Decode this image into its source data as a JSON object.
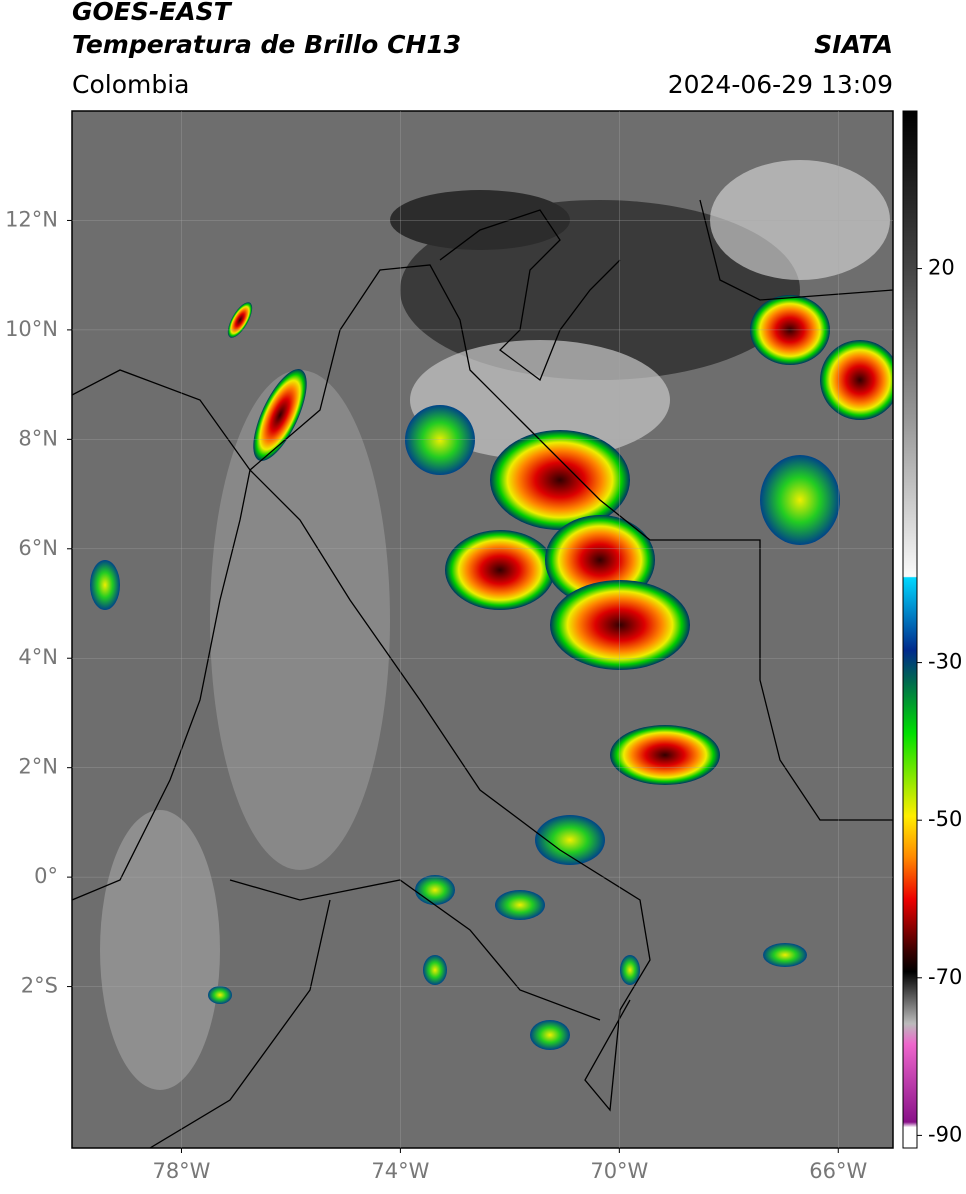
{
  "header": {
    "title": "GOES-EAST",
    "subtitle": "Temperatura de Brillo CH13",
    "region": "Colombia",
    "source": "SIATA",
    "timestamp": "2024-06-29 13:09"
  },
  "map": {
    "xlim": [
      -80,
      -65
    ],
    "ylim": [
      -4.95,
      14
    ],
    "grid": true,
    "lat_ticks": [
      {
        "value": 12,
        "label": "12°N"
      },
      {
        "value": 10,
        "label": "10°N"
      },
      {
        "value": 8,
        "label": "8°N"
      },
      {
        "value": 6,
        "label": "6°N"
      },
      {
        "value": 4,
        "label": "4°N"
      },
      {
        "value": 2,
        "label": "2°N"
      },
      {
        "value": 0,
        "label": "0°"
      },
      {
        "value": -2,
        "label": "2°S"
      }
    ],
    "lon_ticks": [
      {
        "value": -78,
        "label": "78°W"
      },
      {
        "value": -74,
        "label": "74°W"
      },
      {
        "value": -70,
        "label": "70°W"
      },
      {
        "value": -66,
        "label": "66°W"
      }
    ]
  },
  "colorbar": {
    "range": [
      -91.6,
      40
    ],
    "ticks": [
      20,
      -30,
      -50,
      -70,
      -90
    ]
  }
}
